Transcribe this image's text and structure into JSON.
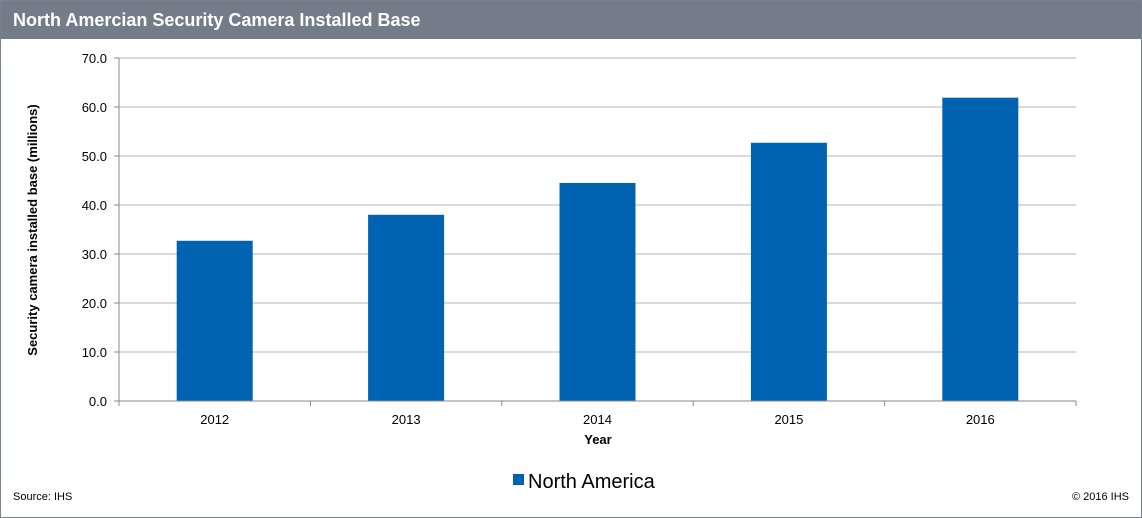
{
  "header": {
    "title": "North Amercian Security Camera Installed Base"
  },
  "footer": {
    "source": "Source: IHS",
    "copyright": "© 2016 IHS"
  },
  "chart_data": {
    "type": "bar",
    "categories": [
      "2012",
      "2013",
      "2014",
      "2015",
      "2016"
    ],
    "series": [
      {
        "name": "North America",
        "values": [
          32.7,
          38.0,
          44.5,
          52.7,
          61.9
        ],
        "color": "#0063b1"
      }
    ],
    "xlabel": "Year",
    "ylabel": "Security camera installed base (millions)",
    "ylim": [
      0,
      70
    ],
    "yticks": [
      "0.0",
      "10.0",
      "20.0",
      "30.0",
      "40.0",
      "50.0",
      "60.0",
      "70.0"
    ],
    "grid": true,
    "legend": "bottom-center"
  }
}
